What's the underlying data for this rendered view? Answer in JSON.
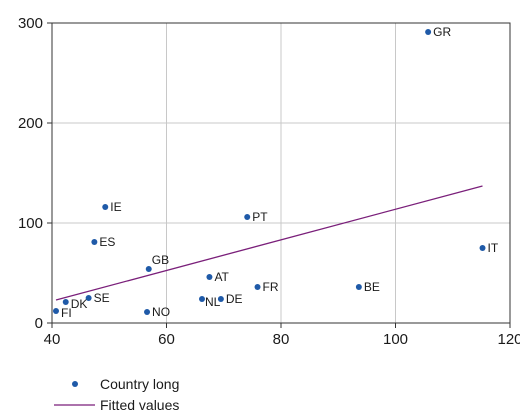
{
  "chart_data": {
    "type": "scatter",
    "xlim": [
      40,
      120
    ],
    "ylim": [
      0,
      300
    ],
    "x_ticks": [
      40,
      60,
      80,
      100,
      120
    ],
    "y_ticks": [
      0,
      100,
      200,
      300
    ],
    "grid": true,
    "legend_position": "bottom-left",
    "colors": {
      "points": "#1f5aa8",
      "fit": "#7a1f7a",
      "grid": "#c8c8c8",
      "axis": "#333333"
    },
    "series": [
      {
        "name": "Country long",
        "kind": "scatter",
        "points": [
          {
            "label": "GR",
            "x": 105.7,
            "y": 291
          },
          {
            "label": "IE",
            "x": 49.3,
            "y": 116
          },
          {
            "label": "PT",
            "x": 74.1,
            "y": 106
          },
          {
            "label": "ES",
            "x": 47.4,
            "y": 81
          },
          {
            "label": "IT",
            "x": 115.2,
            "y": 75
          },
          {
            "label": "GB",
            "x": 56.9,
            "y": 54
          },
          {
            "label": "AT",
            "x": 67.5,
            "y": 46
          },
          {
            "label": "FR",
            "x": 75.9,
            "y": 36
          },
          {
            "label": "BE",
            "x": 93.6,
            "y": 36
          },
          {
            "label": "SE",
            "x": 46.4,
            "y": 25
          },
          {
            "label": "DK",
            "x": 42.4,
            "y": 21
          },
          {
            "label": "NL",
            "x": 66.2,
            "y": 24
          },
          {
            "label": "DE",
            "x": 69.5,
            "y": 24
          },
          {
            "label": "NO",
            "x": 56.6,
            "y": 11
          },
          {
            "label": "FI",
            "x": 40.7,
            "y": 12
          }
        ]
      },
      {
        "name": "Fitted values",
        "kind": "line",
        "points": [
          {
            "x": 40.7,
            "y": 23
          },
          {
            "x": 115.2,
            "y": 137
          }
        ]
      }
    ]
  }
}
